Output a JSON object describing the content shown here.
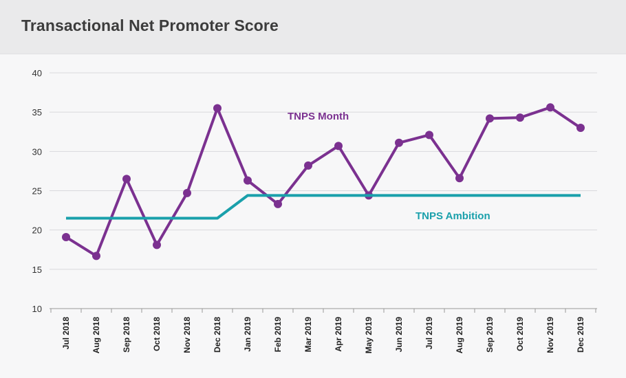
{
  "header": {
    "title": "Transactional Net Promoter Score"
  },
  "colors": {
    "month": "#7b3190",
    "ambition": "#1aa0ab",
    "grid": "#d9d9dc",
    "axis": "#999999"
  },
  "chart_data": {
    "type": "line",
    "title": "Transactional Net Promoter Score",
    "xlabel": "",
    "ylabel": "",
    "ylim": [
      10,
      40
    ],
    "yticks": [
      10,
      15,
      20,
      25,
      30,
      35,
      40
    ],
    "grid": true,
    "categories": [
      "Jul 2018",
      "Aug 2018",
      "Sep 2018",
      "Oct 2018",
      "Nov 2018",
      "Dec 2018",
      "Jan 2019",
      "Feb 2019",
      "Mar 2019",
      "Apr 2019",
      "May 2019",
      "Jun 2019",
      "Jul 2019",
      "Aug 2019",
      "Sep 2019",
      "Oct 2019",
      "Nov 2019",
      "Dec 2019"
    ],
    "series": [
      {
        "name": "TNPS Month",
        "markers": true,
        "values": [
          19.1,
          16.7,
          26.5,
          18.1,
          24.7,
          35.5,
          26.3,
          23.3,
          28.2,
          30.7,
          24.4,
          31.1,
          32.1,
          26.6,
          34.2,
          34.3,
          35.6,
          33.0
        ]
      },
      {
        "name": "TNPS Ambition",
        "markers": false,
        "values": [
          21.5,
          21.5,
          21.5,
          21.5,
          21.5,
          21.5,
          24.4,
          24.4,
          24.4,
          24.4,
          24.4,
          24.4,
          24.4,
          24.4,
          24.4,
          24.4,
          24.4,
          24.4
        ]
      }
    ]
  }
}
